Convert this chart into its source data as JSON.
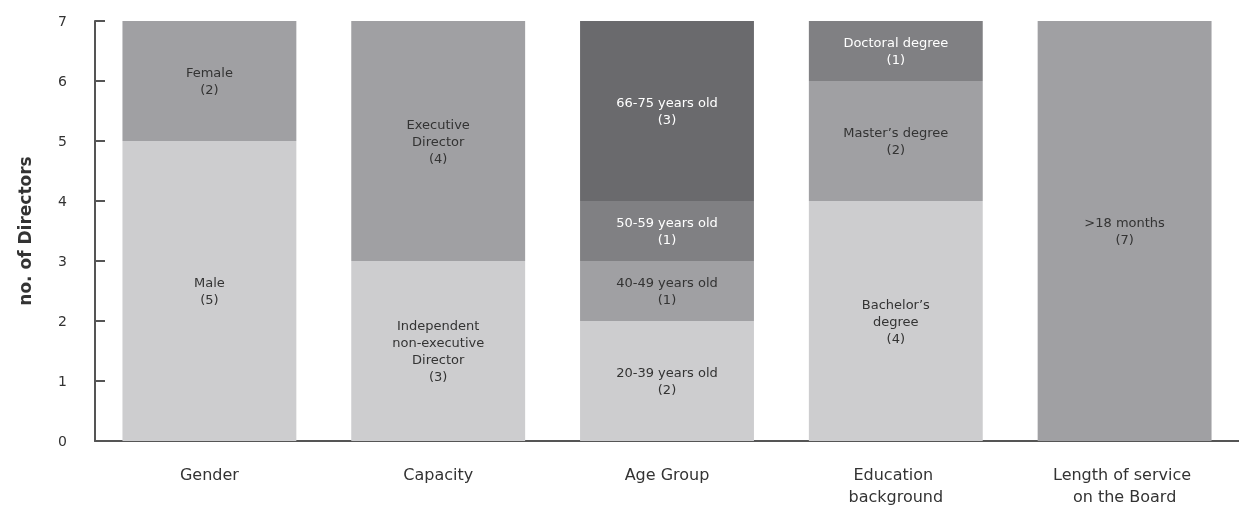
{
  "chart_data": {
    "type": "bar",
    "stacked": true,
    "ylabel": "no. of Directors",
    "categories": [
      "Gender",
      "Capacity",
      "Age Group",
      "Education background",
      "Length of service on the Board"
    ],
    "series": [
      {
        "colors": [
          "#cdcdcf",
          "#cdcdcf",
          "#cdcdcf",
          "#cdcdcf",
          "#a0a0a3"
        ],
        "values": [
          5,
          3,
          2,
          4,
          7
        ],
        "value_labels": [
          "Male\n(5)",
          "Independent\nnon-executive\nDirector\n(3)",
          "20-39 years old\n(2)",
          "Bachelor’s\ndegree\n(4)",
          ">18 months\n(7)"
        ]
      },
      {
        "colors": [
          "#a0a0a3",
          "#a0a0a3",
          "#a0a0a3",
          "#a0a0a3",
          "#a0a0a3"
        ],
        "values": [
          2,
          4,
          1,
          2,
          null
        ],
        "value_labels": [
          "Female\n(2)",
          "Executive\nDirector\n(4)",
          "40-49 years old\n(1)",
          "Master’s degree\n(2)",
          null
        ]
      },
      {
        "colors": [
          "#808083",
          "#808083",
          "#808083",
          "#808083",
          "#808083"
        ],
        "values": [
          null,
          null,
          1,
          1,
          null
        ],
        "value_labels": [
          null,
          null,
          "50-59 years old\n(1)",
          "Doctoral degree\n(1)",
          null
        ]
      },
      {
        "colors": [
          "#6a6a6d",
          "#6a6a6d",
          "#6a6a6d",
          "#6a6a6d",
          "#6a6a6d"
        ],
        "values": [
          null,
          null,
          3,
          null,
          null
        ],
        "value_labels": [
          null,
          null,
          "66-75 years old\n(3)",
          null,
          null
        ]
      }
    ],
    "ylim": [
      0,
      7
    ],
    "yticks": [
      0,
      1,
      2,
      3,
      4,
      5,
      6,
      7
    ],
    "grid": false
  }
}
